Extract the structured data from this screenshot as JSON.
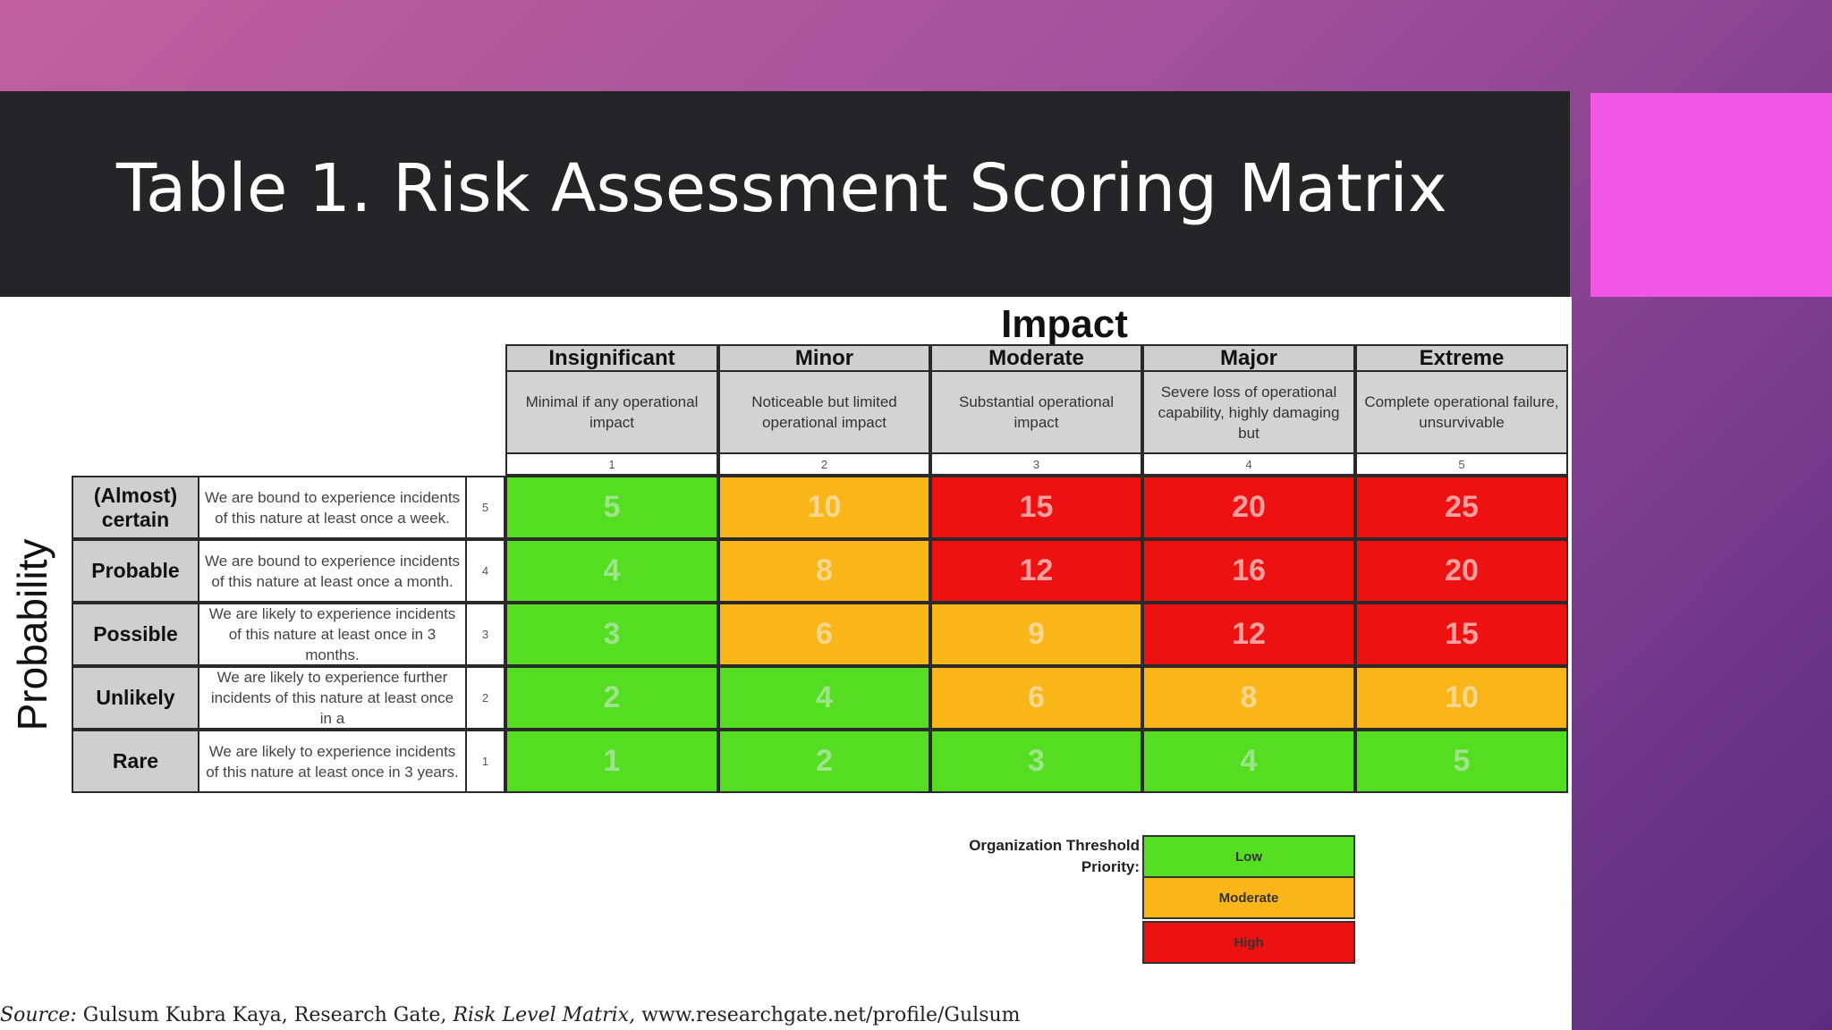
{
  "slide": {
    "title": "Table 1. Risk Assessment Scoring Matrix",
    "accent_color": "#f157e4"
  },
  "matrix": {
    "impact_title": "Impact",
    "probability_title": "Probability",
    "columns": [
      {
        "name": "Insignificant",
        "description": "Minimal if any operational impact",
        "score": "1"
      },
      {
        "name": "Minor",
        "description": "Noticeable but limited operational impact",
        "score": "2"
      },
      {
        "name": "Moderate",
        "description": "Substantial operational impact",
        "score": "3"
      },
      {
        "name": "Major",
        "description": "Severe loss of operational capability, highly damaging but",
        "score": "4"
      },
      {
        "name": "Extreme",
        "description": "Complete operational failure, unsurvivable",
        "score": "5"
      }
    ],
    "rows": [
      {
        "name": "(Almost) certain",
        "description": "We are bound to experience incidents of this nature at least once a week.",
        "score": "5",
        "values": [
          "5",
          "10",
          "15",
          "20",
          "25"
        ],
        "levels": [
          "low",
          "moderate",
          "high",
          "high",
          "high"
        ]
      },
      {
        "name": "Probable",
        "description": "We are bound to experience incidents of this nature at least once a month.",
        "score": "4",
        "values": [
          "4",
          "8",
          "12",
          "16",
          "20"
        ],
        "levels": [
          "low",
          "moderate",
          "high",
          "high",
          "high"
        ]
      },
      {
        "name": "Possible",
        "description": "We are likely to experience incidents of this nature at least once in 3 months.",
        "score": "3",
        "values": [
          "3",
          "6",
          "9",
          "12",
          "15"
        ],
        "levels": [
          "low",
          "moderate",
          "moderate",
          "high",
          "high"
        ]
      },
      {
        "name": "Unlikely",
        "description": "We are likely to experience further incidents of this nature at least once in a",
        "score": "2",
        "values": [
          "2",
          "4",
          "6",
          "8",
          "10"
        ],
        "levels": [
          "low",
          "low",
          "moderate",
          "moderate",
          "moderate"
        ]
      },
      {
        "name": "Rare",
        "description": "We are likely to experience incidents of this nature at least once in 3 years.",
        "score": "1",
        "values": [
          "1",
          "2",
          "3",
          "4",
          "5"
        ],
        "levels": [
          "low",
          "low",
          "low",
          "low",
          "low"
        ]
      }
    ],
    "level_colors": {
      "low": "#55dd22",
      "moderate": "#fab618",
      "high": "#ee1111"
    }
  },
  "legend": {
    "label": "Organization Threshold Priority:",
    "items": [
      {
        "label": "Low",
        "color": "#55dd22"
      },
      {
        "label": "Moderate",
        "color": "#fab618"
      },
      {
        "label": "High",
        "color": "#ee1111"
      }
    ]
  },
  "source": {
    "prefix": "Source:",
    "author": "Gulsum Kubra Kaya, Research Gate,",
    "work": "Risk Level Matrix,",
    "url": "www.researchgate.net/profile/Gulsum"
  }
}
